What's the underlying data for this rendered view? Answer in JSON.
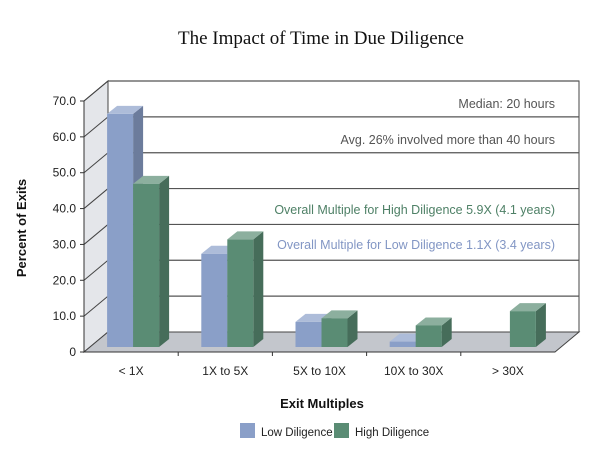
{
  "chart_data": {
    "type": "bar",
    "title": "The Impact of Time in Due Diligence",
    "xlabel": "Exit Multiples",
    "ylabel": "Percent of Exits",
    "ylim": [
      0,
      70
    ],
    "yticks": [
      "0",
      "10.0",
      "20.0",
      "30.0",
      "40.0",
      "50.0",
      "60.0",
      "70.0"
    ],
    "categories": [
      "< 1X",
      "1X to 5X",
      "5X to 10X",
      "10X to 30X",
      "> 30X"
    ],
    "series": [
      {
        "name": "Low Diligence",
        "color": "#8a9fc8",
        "values": [
          65,
          26,
          7,
          1.5,
          0
        ]
      },
      {
        "name": "High Diligence",
        "color": "#5a8c74",
        "values": [
          45.5,
          30,
          8,
          6,
          10
        ]
      }
    ],
    "grid": true,
    "legend": "bottom",
    "annotations": [
      {
        "text": "Median: 20 hours",
        "color": "#555555"
      },
      {
        "text": "Avg. 26% involved more than 40 hours",
        "color": "#555555"
      },
      {
        "text": "Overall Multiple for High Diligence 5.9X (4.1 years)",
        "color": "#4e8066"
      },
      {
        "text": "Overall Multiple for Low Diligence 1.1X (3.4 years)",
        "color": "#8296c4"
      }
    ]
  }
}
